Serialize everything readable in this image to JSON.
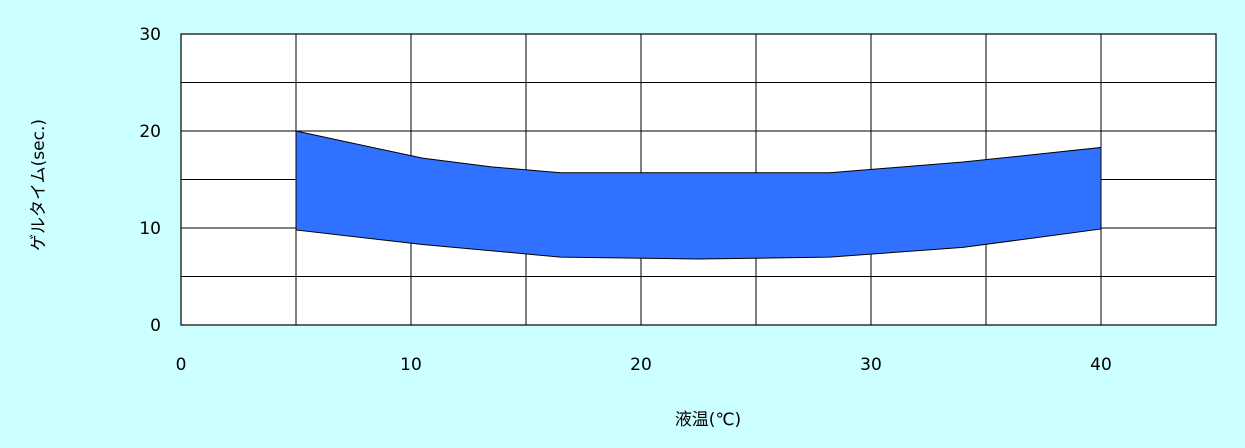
{
  "chart_data": {
    "type": "area",
    "xlabel": "液温(℃)",
    "ylabel": "ゲルタイム(sec.)",
    "xlim": [
      0,
      45
    ],
    "ylim": [
      0,
      30
    ],
    "x_ticks": [
      0,
      10,
      20,
      30,
      40
    ],
    "y_ticks": [
      0,
      10,
      20,
      30
    ],
    "x_grid_step": 5,
    "y_grid_step": 5,
    "grid": true,
    "series": [
      {
        "upper": [
          {
            "x": 5,
            "y": 20.0
          },
          {
            "x": 10.5,
            "y": 17.2
          },
          {
            "x": 13.5,
            "y": 16.3
          },
          {
            "x": 16.5,
            "y": 15.7
          },
          {
            "x": 28.2,
            "y": 15.7
          },
          {
            "x": 34,
            "y": 16.8
          },
          {
            "x": 40,
            "y": 18.3
          }
        ],
        "lower": [
          {
            "x": 5,
            "y": 9.8
          },
          {
            "x": 10.5,
            "y": 8.3
          },
          {
            "x": 16.5,
            "y": 7.0
          },
          {
            "x": 22.5,
            "y": 6.8
          },
          {
            "x": 28.2,
            "y": 7.0
          },
          {
            "x": 34,
            "y": 8.0
          },
          {
            "x": 40,
            "y": 9.9
          }
        ]
      }
    ],
    "colors": {
      "fill": "#3072ff",
      "stroke": "#000000",
      "background": "#ccffff",
      "plot_background": "#ffffff",
      "grid": "#000000"
    }
  }
}
